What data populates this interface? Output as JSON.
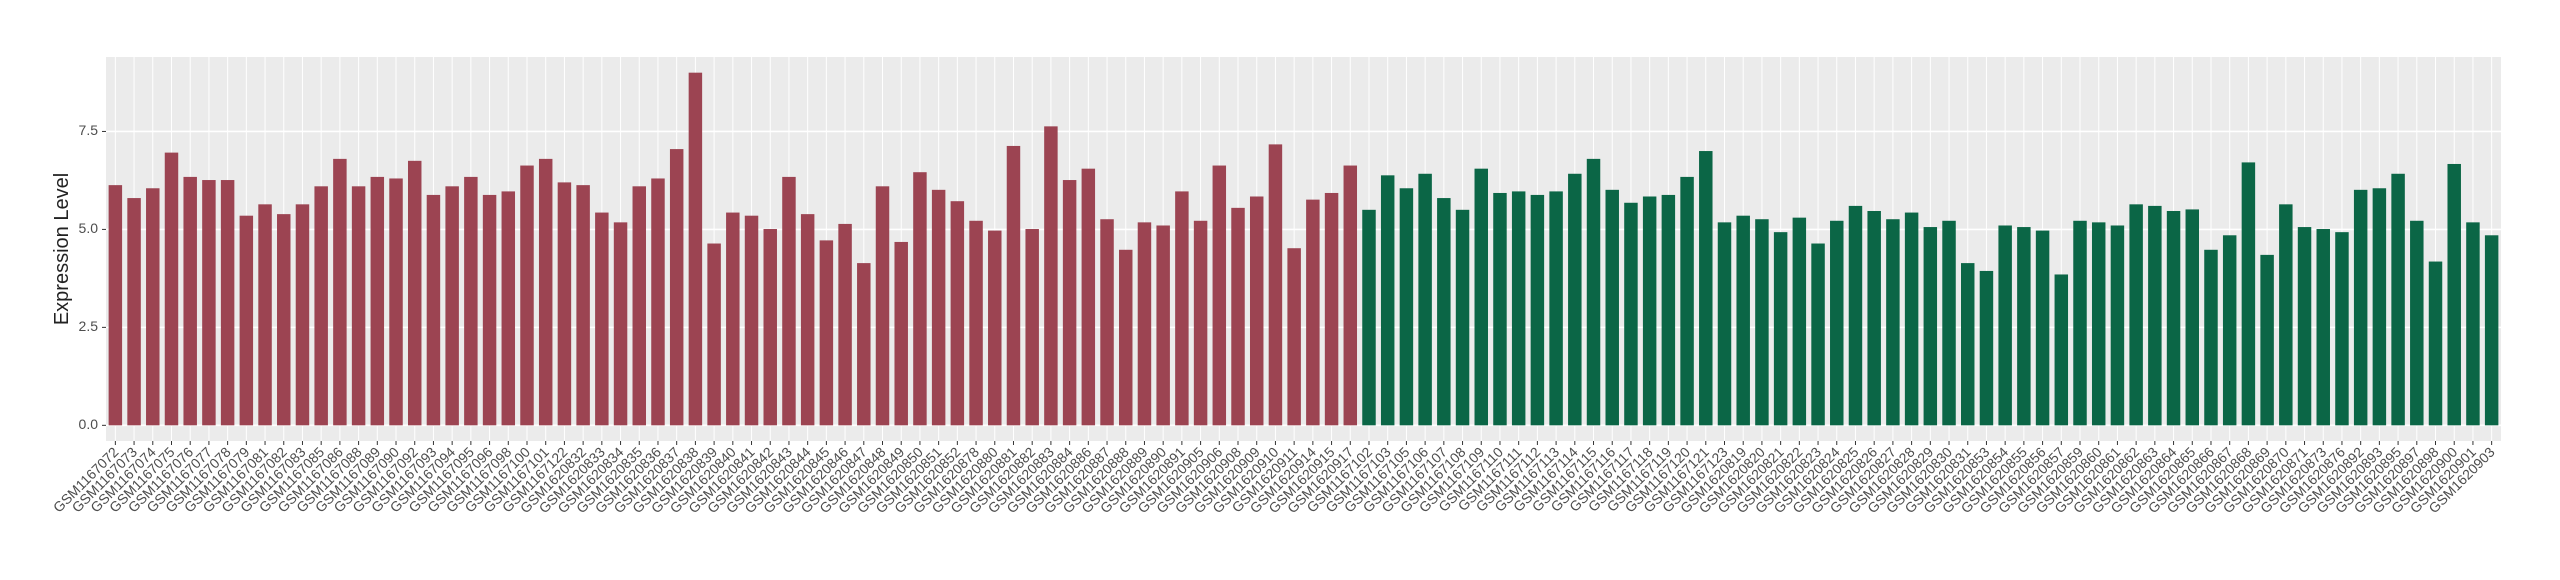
{
  "chart_data": {
    "type": "bar",
    "y_label": "Expression Level",
    "categories": [
      "GSM1167072",
      "GSM1167073",
      "GSM1167074",
      "GSM1167075",
      "GSM1167076",
      "GSM1167077",
      "GSM1167078",
      "GSM1167079",
      "GSM1167081",
      "GSM1167082",
      "GSM1167083",
      "GSM1167085",
      "GSM1167086",
      "GSM1167088",
      "GSM1167089",
      "GSM1167090",
      "GSM1167092",
      "GSM1167093",
      "GSM1167094",
      "GSM1167095",
      "GSM1167096",
      "GSM1167098",
      "GSM1167100",
      "GSM1167101",
      "GSM1167122",
      "GSM1620832",
      "GSM1620833",
      "GSM1620834",
      "GSM1620835",
      "GSM1620836",
      "GSM1620837",
      "GSM1620838",
      "GSM1620839",
      "GSM1620840",
      "GSM1620841",
      "GSM1620842",
      "GSM1620843",
      "GSM1620844",
      "GSM1620845",
      "GSM1620846",
      "GSM1620847",
      "GSM1620848",
      "GSM1620849",
      "GSM1620850",
      "GSM1620851",
      "GSM1620852",
      "GSM1620878",
      "GSM1620880",
      "GSM1620881",
      "GSM1620882",
      "GSM1620883",
      "GSM1620884",
      "GSM1620886",
      "GSM1620887",
      "GSM1620888",
      "GSM1620889",
      "GSM1620890",
      "GSM1620891",
      "GSM1620905",
      "GSM1620906",
      "GSM1620908",
      "GSM1620909",
      "GSM1620910",
      "GSM1620911",
      "GSM1620914",
      "GSM1620915",
      "GSM1620917",
      "GSM1167102",
      "GSM1167103",
      "GSM1167105",
      "GSM1167106",
      "GSM1167107",
      "GSM1167108",
      "GSM1167109",
      "GSM1167110",
      "GSM1167111",
      "GSM1167112",
      "GSM1167113",
      "GSM1167114",
      "GSM1167115",
      "GSM1167116",
      "GSM1167117",
      "GSM1167118",
      "GSM1167119",
      "GSM1167120",
      "GSM1167121",
      "GSM1167123",
      "GSM1620819",
      "GSM1620820",
      "GSM1620821",
      "GSM1620822",
      "GSM1620823",
      "GSM1620824",
      "GSM1620825",
      "GSM1620826",
      "GSM1620827",
      "GSM1620828",
      "GSM1620829",
      "GSM1620830",
      "GSM1620831",
      "GSM1620853",
      "GSM1620854",
      "GSM1620855",
      "GSM1620856",
      "GSM1620857",
      "GSM1620859",
      "GSM1620860",
      "GSM1620861",
      "GSM1620862",
      "GSM1620863",
      "GSM1620864",
      "GSM1620865",
      "GSM1620866",
      "GSM1620867",
      "GSM1620868",
      "GSM1620869",
      "GSM1620870",
      "GSM1620871",
      "GSM1620873",
      "GSM1620876",
      "GSM1620892",
      "GSM1620893",
      "GSM1620895",
      "GSM1620897",
      "GSM1620898",
      "GSM1620900",
      "GSM1620901",
      "GSM1620903"
    ],
    "values": [
      6.13,
      5.8,
      6.05,
      6.96,
      6.34,
      6.26,
      6.26,
      5.35,
      5.64,
      5.39,
      5.64,
      6.1,
      6.8,
      6.1,
      6.34,
      6.3,
      6.75,
      5.88,
      6.1,
      6.34,
      5.88,
      5.97,
      6.63,
      6.8,
      6.2,
      6.13,
      5.43,
      5.18,
      6.1,
      6.3,
      7.05,
      9.0,
      4.64,
      5.43,
      5.35,
      5.01,
      6.34,
      5.39,
      4.72,
      5.14,
      4.14,
      6.1,
      4.68,
      6.46,
      6.01,
      5.72,
      5.22,
      4.97,
      7.13,
      5.01,
      7.63,
      6.26,
      6.55,
      5.26,
      4.48,
      5.18,
      5.1,
      5.97,
      5.22,
      6.63,
      5.55,
      5.84,
      7.17,
      4.52,
      5.76,
      5.93,
      6.63,
      5.5,
      6.38,
      6.05,
      6.42,
      5.8,
      5.5,
      6.55,
      5.93,
      5.97,
      5.88,
      5.97,
      6.42,
      6.8,
      6.01,
      5.68,
      5.84,
      5.88,
      6.34,
      7.0,
      5.18,
      5.35,
      5.26,
      4.93,
      5.3,
      4.64,
      5.22,
      5.6,
      5.47,
      5.26,
      5.43,
      5.06,
      5.22,
      4.14,
      3.94,
      5.1,
      5.06,
      4.97,
      3.85,
      5.22,
      5.18,
      5.1,
      5.64,
      5.6,
      5.47,
      5.51,
      4.48,
      4.85,
      6.71,
      4.35,
      5.64,
      5.06,
      5.01,
      4.93,
      6.01,
      6.05,
      6.42,
      5.22,
      4.18,
      6.67,
      5.18,
      4.85
    ],
    "colors": [
      "#9c4452",
      "#9c4452",
      "#9c4452",
      "#9c4452",
      "#9c4452",
      "#9c4452",
      "#9c4452",
      "#9c4452",
      "#9c4452",
      "#9c4452",
      "#9c4452",
      "#9c4452",
      "#9c4452",
      "#9c4452",
      "#9c4452",
      "#9c4452",
      "#9c4452",
      "#9c4452",
      "#9c4452",
      "#9c4452",
      "#9c4452",
      "#9c4452",
      "#9c4452",
      "#9c4452",
      "#9c4452",
      "#9c4452",
      "#9c4452",
      "#9c4452",
      "#9c4452",
      "#9c4452",
      "#9c4452",
      "#9c4452",
      "#9c4452",
      "#9c4452",
      "#9c4452",
      "#9c4452",
      "#9c4452",
      "#9c4452",
      "#9c4452",
      "#9c4452",
      "#9c4452",
      "#9c4452",
      "#9c4452",
      "#9c4452",
      "#9c4452",
      "#9c4452",
      "#9c4452",
      "#9c4452",
      "#9c4452",
      "#9c4452",
      "#9c4452",
      "#9c4452",
      "#9c4452",
      "#9c4452",
      "#9c4452",
      "#9c4452",
      "#9c4452",
      "#9c4452",
      "#9c4452",
      "#9c4452",
      "#9c4452",
      "#9c4452",
      "#9c4452",
      "#9c4452",
      "#9c4452",
      "#9c4452",
      "#9c4452",
      "#0b6646",
      "#0b6646",
      "#0b6646",
      "#0b6646",
      "#0b6646",
      "#0b6646",
      "#0b6646",
      "#0b6646",
      "#0b6646",
      "#0b6646",
      "#0b6646",
      "#0b6646",
      "#0b6646",
      "#0b6646",
      "#0b6646",
      "#0b6646",
      "#0b6646",
      "#0b6646",
      "#0b6646",
      "#0b6646",
      "#0b6646",
      "#0b6646",
      "#0b6646",
      "#0b6646",
      "#0b6646",
      "#0b6646",
      "#0b6646",
      "#0b6646",
      "#0b6646",
      "#0b6646",
      "#0b6646",
      "#0b6646",
      "#0b6646",
      "#0b6646",
      "#0b6646",
      "#0b6646",
      "#0b6646",
      "#0b6646",
      "#0b6646",
      "#0b6646",
      "#0b6646",
      "#0b6646",
      "#0b6646",
      "#0b6646",
      "#0b6646",
      "#0b6646",
      "#0b6646",
      "#0b6646",
      "#0b6646",
      "#0b6646",
      "#0b6646",
      "#0b6646",
      "#0b6646",
      "#0b6646",
      "#0b6646",
      "#0b6646",
      "#0b6646",
      "#0b6646",
      "#0b6646",
      "#0b6646",
      "#0b6646"
    ],
    "ylim": [
      -0.4,
      9.4
    ],
    "yticks": [
      {
        "value": 0,
        "label": "0.0"
      },
      2.5,
      {
        "value": 5,
        "label": "5.0"
      },
      7.5
    ],
    "grid": true
  }
}
